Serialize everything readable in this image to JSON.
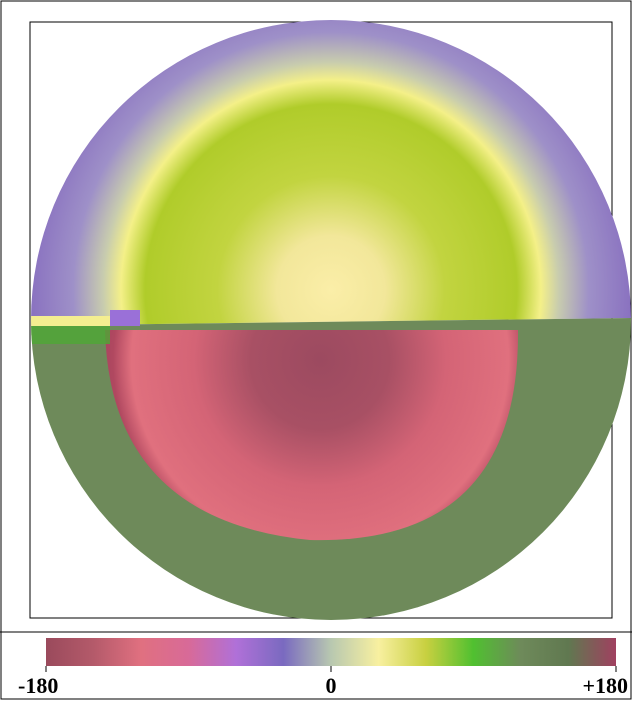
{
  "chart_data": {
    "type": "phase-map",
    "clim": [
      -180,
      180
    ],
    "cticks": [
      -180,
      0,
      {
        "value": 180,
        "label": "+180"
      }
    ],
    "colorbar_colors": [
      "#9a4a5c",
      "#b45a6a",
      "#e07080",
      "#d86a98",
      "#b070d8",
      "#7a6ac0",
      "#b8c8b0",
      "#f8f0a0",
      "#c8d040",
      "#50c030",
      "#6e8a5a",
      "#607850",
      "#a04060"
    ]
  }
}
